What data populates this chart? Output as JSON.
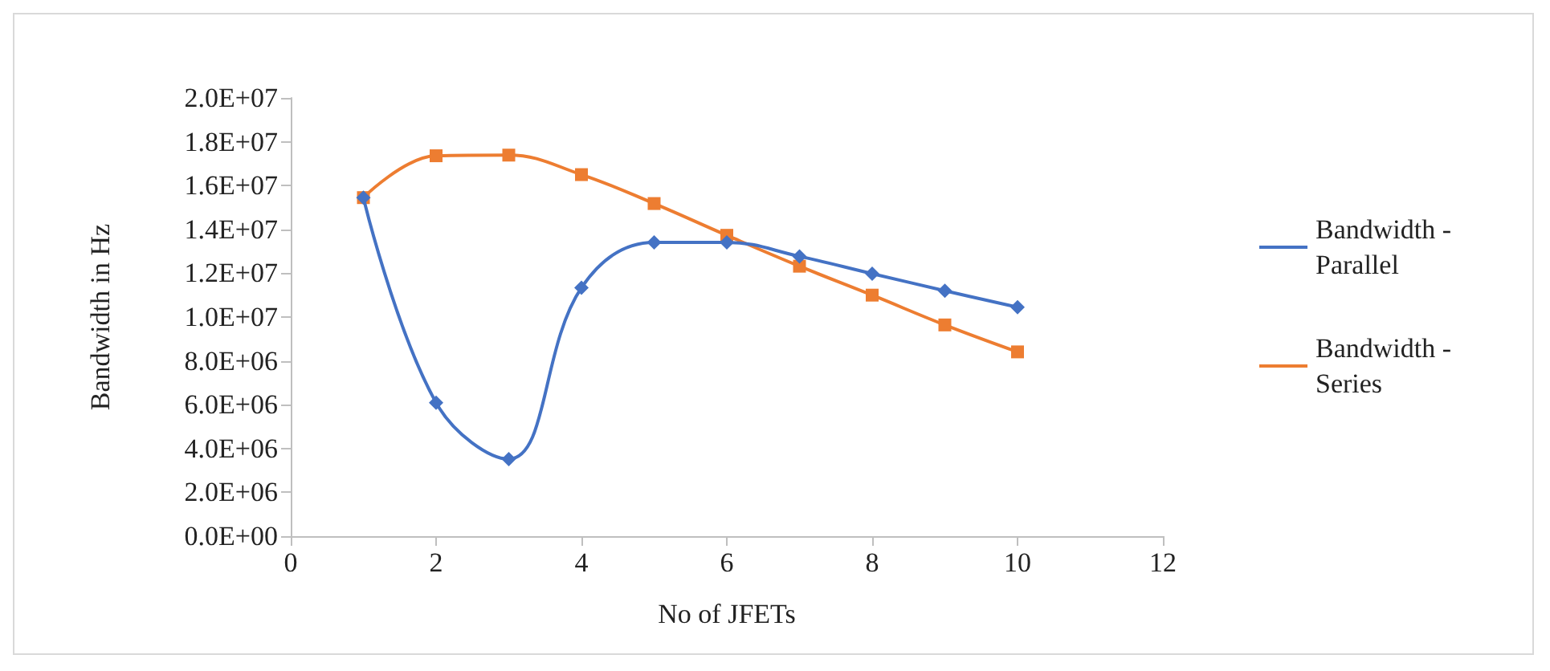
{
  "chart_data": {
    "type": "line",
    "xlabel": "No of JFETs",
    "ylabel": "Bandwidth in Hz",
    "x": [
      1,
      2,
      3,
      4,
      5,
      6,
      7,
      8,
      9,
      10
    ],
    "series": [
      {
        "name": "Bandwidth - Parallel",
        "color": "#4472c4",
        "marker": "diamond",
        "values": [
          15450000,
          6090000,
          3520000,
          11340000,
          13410000,
          13410000,
          12770000,
          11980000,
          11200000,
          10450000
        ]
      },
      {
        "name": "Bandwidth - Series",
        "color": "#ed7d31",
        "marker": "square",
        "values": [
          15450000,
          17360000,
          17390000,
          16500000,
          15180000,
          13730000,
          12320000,
          11000000,
          9640000,
          8410000
        ]
      }
    ],
    "xlim": [
      0,
      12
    ],
    "xticks": [
      0,
      2,
      4,
      6,
      8,
      10,
      12
    ],
    "ylim": [
      0,
      20000000
    ],
    "yticks": [
      {
        "value": 0,
        "label": "0.0E+00"
      },
      {
        "value": 2000000,
        "label": "2.0E+06"
      },
      {
        "value": 4000000,
        "label": "4.0E+06"
      },
      {
        "value": 6000000,
        "label": "6.0E+06"
      },
      {
        "value": 8000000,
        "label": "8.0E+06"
      },
      {
        "value": 10000000,
        "label": "1.0E+07"
      },
      {
        "value": 12000000,
        "label": "1.2E+07"
      },
      {
        "value": 14000000,
        "label": "1.4E+07"
      },
      {
        "value": 16000000,
        "label": "1.6E+07"
      },
      {
        "value": 18000000,
        "label": "1.8E+07"
      },
      {
        "value": 20000000,
        "label": "2.0E+07"
      }
    ],
    "grid": false,
    "legend": "right",
    "line_style": "solid"
  }
}
